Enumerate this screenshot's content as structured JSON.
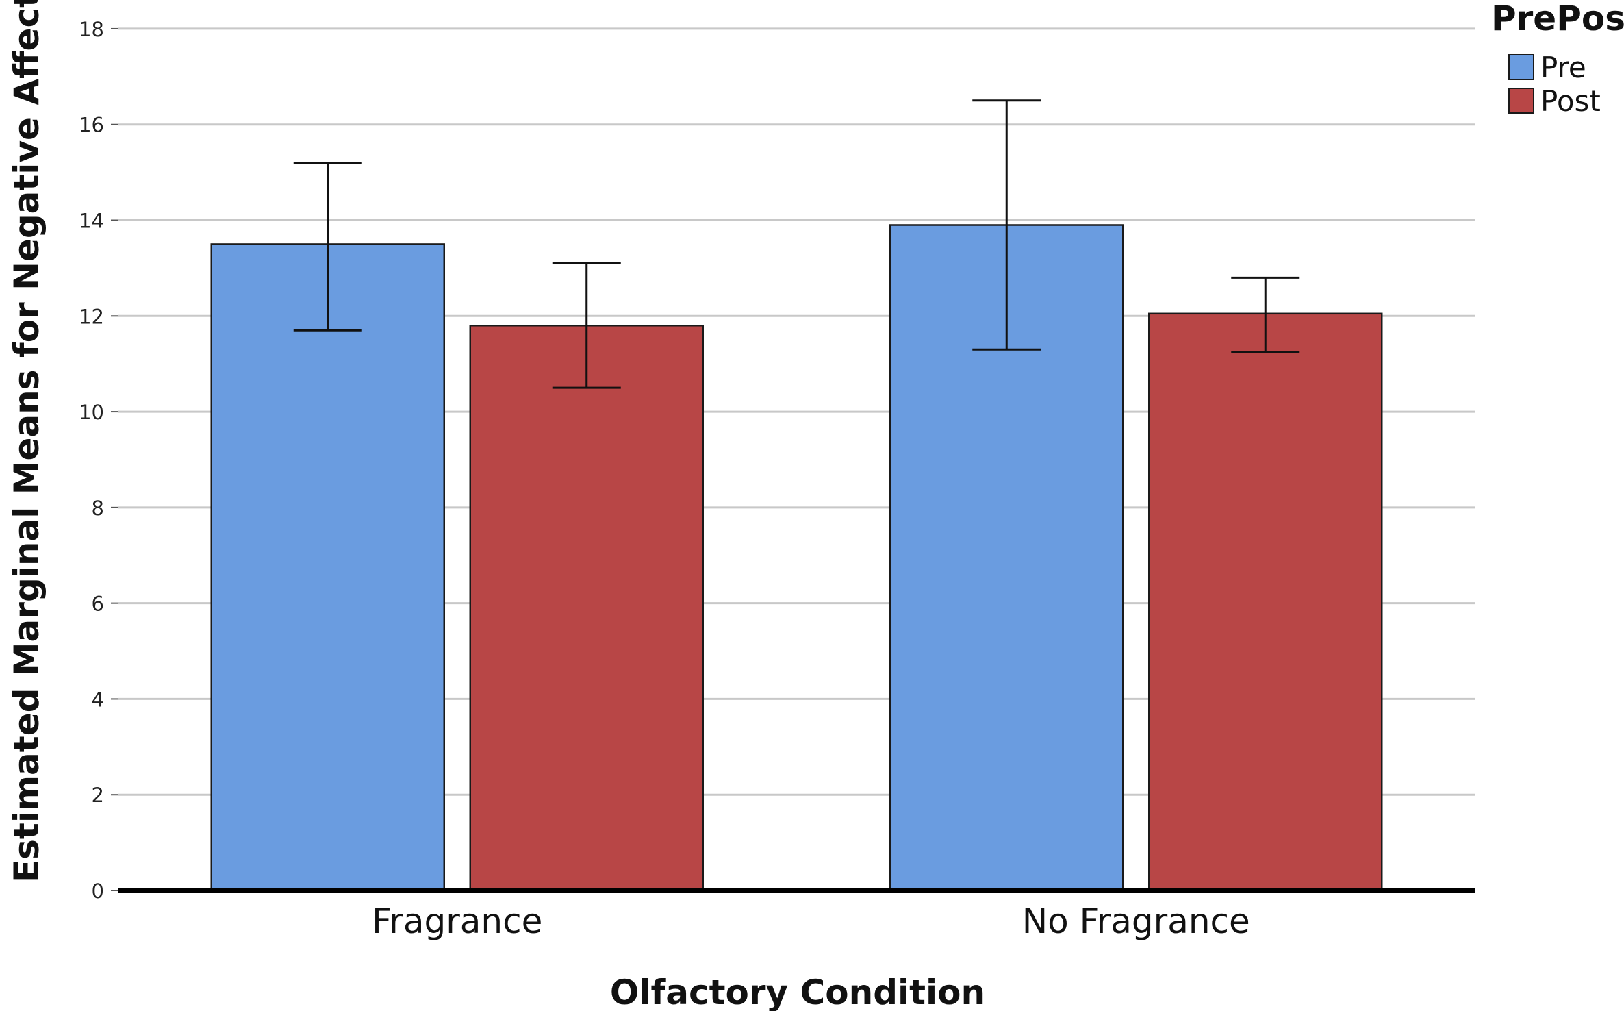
{
  "chart_data": {
    "type": "bar",
    "title": "",
    "xlabel": "Olfactory Condition",
    "ylabel": "Estimated Marginal Means for Negative Affect",
    "categories": [
      "Fragrance",
      "No Fragrance"
    ],
    "series": [
      {
        "name": "Pre",
        "color": "#6a9ce0",
        "values": [
          13.5,
          13.9
        ],
        "error_low": [
          11.7,
          11.3
        ],
        "error_high": [
          15.2,
          16.5
        ]
      },
      {
        "name": "Post",
        "color": "#b84646",
        "values": [
          11.8,
          12.05
        ],
        "error_low": [
          10.5,
          11.25
        ],
        "error_high": [
          13.1,
          12.8
        ]
      }
    ],
    "ylim": [
      0,
      18.6
    ],
    "yticks": [
      0,
      2,
      4,
      6,
      8,
      10,
      12,
      14,
      16,
      18
    ],
    "grid": true,
    "legend": {
      "title": "PrePost",
      "position": "top-right"
    }
  }
}
